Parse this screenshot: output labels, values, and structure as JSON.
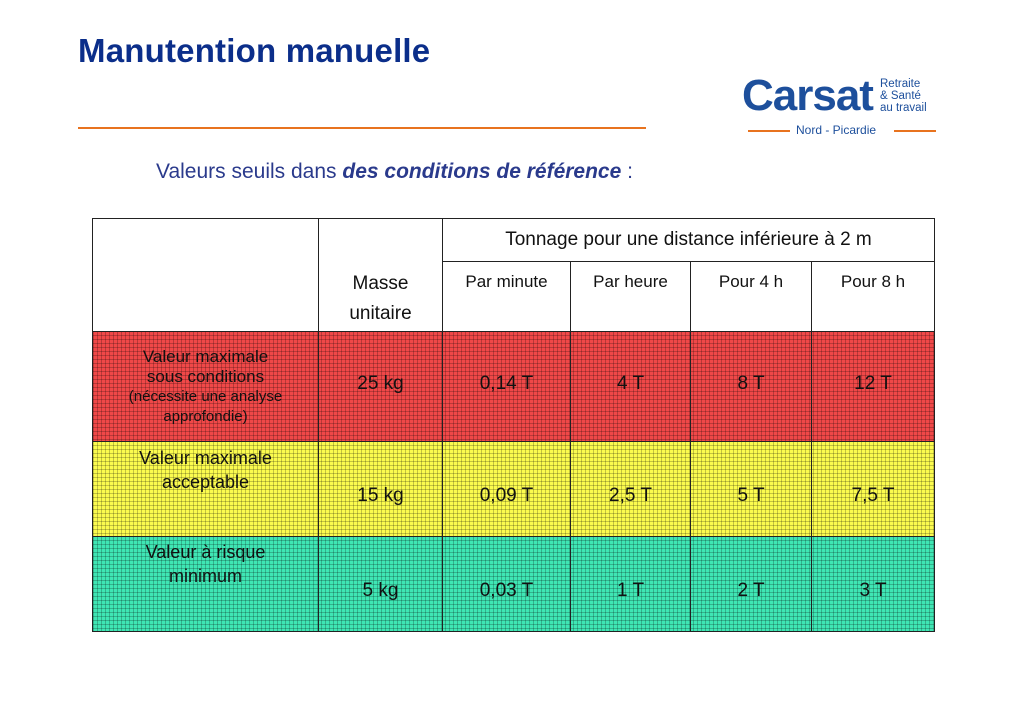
{
  "slide": {
    "title": "Manutention manuelle",
    "subtitle_prefix": "Valeurs seuils dans ",
    "subtitle_emphasis": "des conditions de référence",
    "subtitle_suffix": " :"
  },
  "logo": {
    "word": "Carsat",
    "tag1": "Retraite",
    "tag2": "& Santé",
    "tag3": "au travail",
    "region": "Nord - Picardie"
  },
  "colors": {
    "title": "#0b2e8a",
    "accent_rule": "#e8731f",
    "row_red": "#f04848",
    "row_yellow": "#fbfb4e",
    "row_green": "#3fe6b4"
  },
  "table": {
    "span_header": "Tonnage pour une distance inférieure à 2 m",
    "masse_line1": "Masse",
    "masse_line2": "unitaire",
    "subheaders": [
      "Par minute",
      "Par heure",
      "Pour 4 h",
      "Pour 8 h"
    ],
    "rows": [
      {
        "label_lines": [
          "Valeur maximale",
          "sous conditions",
          "(nécessite une analyse",
          "approfondie)"
        ],
        "masse": "25 kg",
        "values": [
          "0,14 T",
          "4 T",
          "8 T",
          "12 T"
        ]
      },
      {
        "label_lines": [
          "Valeur maximale",
          "acceptable"
        ],
        "masse": "15 kg",
        "values": [
          "0,09 T",
          "2,5 T",
          "5 T",
          "7,5 T"
        ]
      },
      {
        "label_lines": [
          "Valeur à risque",
          "minimum"
        ],
        "masse": "5 kg",
        "values": [
          "0,03 T",
          "1 T",
          "2 T",
          "3 T"
        ]
      }
    ]
  }
}
